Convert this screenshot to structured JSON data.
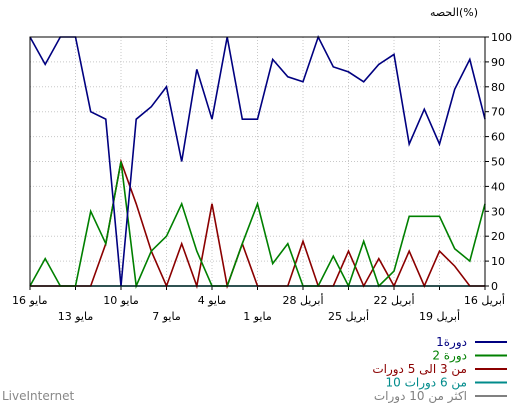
{
  "chart_data": {
    "type": "line",
    "ylabel": "الحصه(%)",
    "ylim": [
      0,
      100
    ],
    "yticks": [
      0,
      10,
      20,
      30,
      40,
      50,
      60,
      70,
      80,
      90,
      100
    ],
    "grid": true,
    "x_axis_reversed": true,
    "x_tick_labels_upper": [
      "16 مايو",
      "10 مايو",
      "4 مايو",
      "28 أبريل",
      "22 أبريل",
      "16 أبريل"
    ],
    "x_tick_labels_lower": [
      "13 مايو",
      "7 مايو",
      "1 مايو",
      "25 أبريل",
      "19 أبريل"
    ],
    "legend_position": "bottom-right",
    "series": [
      {
        "name": "1دورة",
        "color": "#000080",
        "values": [
          100,
          89,
          100,
          100,
          70,
          67,
          0,
          67,
          72,
          80,
          50,
          87,
          67,
          100,
          67,
          67,
          91,
          84,
          82,
          100,
          88,
          86,
          82,
          89,
          93,
          57,
          71,
          57,
          79,
          91,
          67
        ]
      },
      {
        "name": "2 دورة",
        "color": "#008000",
        "values": [
          0,
          11,
          0,
          0,
          30,
          17,
          50,
          0,
          14,
          20,
          33,
          14,
          0,
          0,
          17,
          33,
          9,
          17,
          0,
          0,
          12,
          0,
          18,
          0,
          6,
          28,
          28,
          28,
          15,
          10,
          33
        ]
      },
      {
        "name": "من 3 الى 5 دورات",
        "color": "#8b0000",
        "values": [
          0,
          0,
          0,
          0,
          0,
          17,
          50,
          33,
          14,
          0,
          17,
          0,
          33,
          0,
          17,
          0,
          0,
          0,
          18,
          0,
          0,
          14,
          0,
          11,
          0,
          14,
          0,
          14,
          8,
          0,
          0
        ]
      },
      {
        "name": "من 6 دورات 10",
        "color": "#008b8b",
        "values": [
          0,
          0,
          0,
          0,
          0,
          0,
          0,
          0,
          0,
          0,
          0,
          0,
          0,
          0,
          0,
          0,
          0,
          0,
          0,
          0,
          0,
          0,
          0,
          0,
          0,
          0,
          0,
          0,
          0,
          0,
          0
        ]
      },
      {
        "name": "اكثر من 10 دورات",
        "color": "#808080",
        "values": [
          0,
          0,
          0,
          0,
          0,
          0,
          0,
          0,
          0,
          0,
          0,
          0,
          0,
          0,
          0,
          0,
          0,
          0,
          0,
          0,
          0,
          0,
          0,
          0,
          0,
          0,
          0,
          0,
          0,
          0,
          0
        ]
      }
    ]
  },
  "watermark": "LiveInternet"
}
